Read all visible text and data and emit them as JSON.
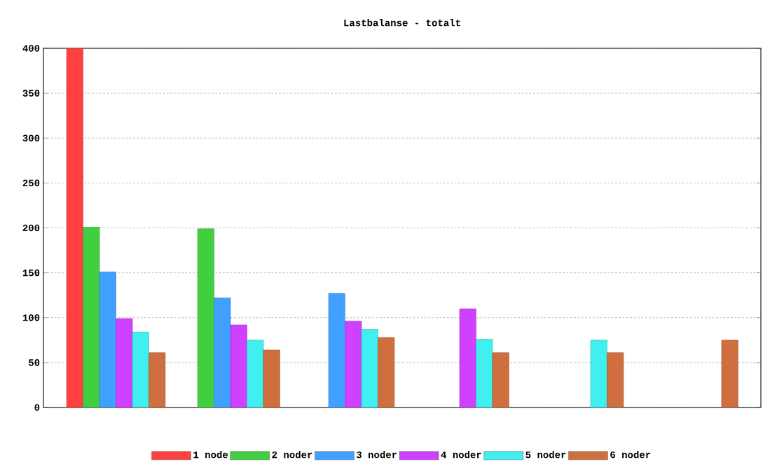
{
  "chart_data": {
    "type": "bar",
    "title": "Lastbalanse - totalt",
    "categories": [
      null,
      null,
      null,
      null,
      null,
      null
    ],
    "series": [
      {
        "name": "1 node",
        "color": "#ff4040",
        "values": [
          400,
          null,
          null,
          null,
          null,
          null
        ]
      },
      {
        "name": "2 noder",
        "color": "#40cf40",
        "values": [
          201,
          199,
          null,
          null,
          null,
          null
        ]
      },
      {
        "name": "3 noder",
        "color": "#40a0ff",
        "values": [
          151,
          122,
          127,
          null,
          null,
          null
        ]
      },
      {
        "name": "4 noder",
        "color": "#cf40ff",
        "values": [
          99,
          92,
          96,
          110,
          null,
          null
        ]
      },
      {
        "name": "5 noder",
        "color": "#40efef",
        "values": [
          84,
          75,
          87,
          76,
          75,
          null
        ]
      },
      {
        "name": "6 noder",
        "color": "#cf6f40",
        "values": [
          61,
          64,
          78,
          61,
          61,
          75
        ]
      }
    ],
    "ylim": [
      0,
      400
    ],
    "yticks": [
      0,
      50,
      100,
      150,
      200,
      250,
      300,
      350,
      400
    ],
    "grid": "y",
    "legend": "bottom",
    "tick_labels": "y"
  }
}
